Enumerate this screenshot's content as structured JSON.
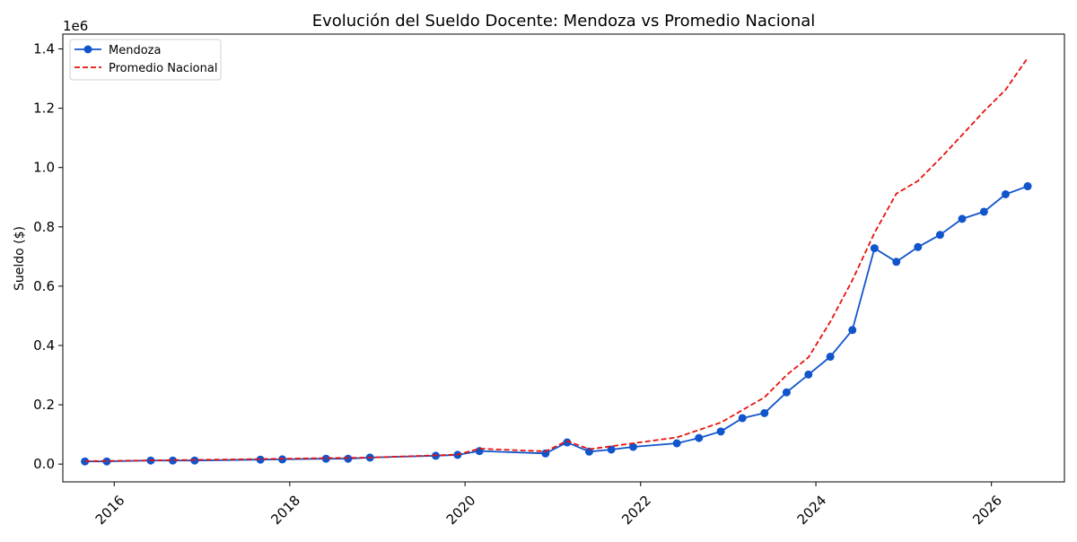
{
  "chart_data": {
    "type": "line",
    "title": "Evolución del Sueldo Docente: Mendoza vs Promedio Nacional",
    "xlabel": "",
    "ylabel": "Sueldo ($)",
    "y_offset_label": "1e6",
    "xlim": [
      "2015-06-01",
      "2026-11-01"
    ],
    "ylim": [
      -0.06,
      1.45
    ],
    "x_ticks": [
      "2016-01-01",
      "2018-01-01",
      "2020-01-01",
      "2022-01-01",
      "2024-01-01",
      "2026-01-01"
    ],
    "x_tick_labels": [
      "2016",
      "2018",
      "2020",
      "2022",
      "2024",
      "2026"
    ],
    "y_ticks": [
      0.0,
      0.2,
      0.4,
      0.6,
      0.8,
      1.0,
      1.2,
      1.4
    ],
    "y_tick_labels": [
      "0.0",
      "0.2",
      "0.4",
      "0.6",
      "0.8",
      "1.0",
      "1.2",
      "1.4"
    ],
    "grid": false,
    "legend_position": "top-left",
    "series": [
      {
        "name": "Mendoza",
        "color": "#1155cc",
        "style": "solid",
        "marker": "circle",
        "points": [
          [
            "2015-09-01",
            0.009
          ],
          [
            "2015-12-01",
            0.009
          ],
          [
            "2016-06-01",
            0.012
          ],
          [
            "2016-09-01",
            0.012
          ],
          [
            "2016-12-01",
            0.012
          ],
          [
            "2017-09-01",
            0.015
          ],
          [
            "2017-12-01",
            0.016
          ],
          [
            "2018-06-01",
            0.018
          ],
          [
            "2018-09-01",
            0.018
          ],
          [
            "2018-12-01",
            0.022
          ],
          [
            "2019-09-01",
            0.028
          ],
          [
            "2019-12-01",
            0.031
          ],
          [
            "2020-03-01",
            0.044
          ],
          [
            "2020-12-01",
            0.036
          ],
          [
            "2021-03-01",
            0.073
          ],
          [
            "2021-06-01",
            0.042
          ],
          [
            "2021-09-01",
            0.049
          ],
          [
            "2021-12-01",
            0.058
          ],
          [
            "2022-06-01",
            0.07
          ],
          [
            "2022-09-01",
            0.088
          ],
          [
            "2022-12-01",
            0.11
          ],
          [
            "2023-03-01",
            0.155
          ],
          [
            "2023-06-01",
            0.172
          ],
          [
            "2023-09-01",
            0.242
          ],
          [
            "2023-12-01",
            0.302
          ],
          [
            "2024-03-01",
            0.362
          ],
          [
            "2024-06-01",
            0.452
          ],
          [
            "2024-09-01",
            0.728
          ],
          [
            "2024-12-01",
            0.682
          ],
          [
            "2025-03-01",
            0.732
          ],
          [
            "2025-06-01",
            0.773
          ],
          [
            "2025-09-01",
            0.827
          ],
          [
            "2025-12-01",
            0.851
          ],
          [
            "2026-03-01",
            0.91
          ],
          [
            "2026-06-01",
            0.937
          ]
        ]
      },
      {
        "name": "Promedio Nacional",
        "color": "#e8120c",
        "style": "dashed",
        "marker": "none",
        "points": [
          [
            "2015-09-01",
            0.01
          ],
          [
            "2016-12-01",
            0.014
          ],
          [
            "2017-12-01",
            0.018
          ],
          [
            "2018-12-01",
            0.022
          ],
          [
            "2019-12-01",
            0.032
          ],
          [
            "2020-03-01",
            0.052
          ],
          [
            "2020-12-01",
            0.043
          ],
          [
            "2021-03-01",
            0.078
          ],
          [
            "2021-06-01",
            0.05
          ],
          [
            "2021-12-01",
            0.07
          ],
          [
            "2022-06-01",
            0.09
          ],
          [
            "2022-12-01",
            0.14
          ],
          [
            "2023-06-01",
            0.225
          ],
          [
            "2023-09-01",
            0.3
          ],
          [
            "2023-12-01",
            0.36
          ],
          [
            "2024-03-01",
            0.48
          ],
          [
            "2024-06-01",
            0.62
          ],
          [
            "2024-09-01",
            0.78
          ],
          [
            "2024-12-01",
            0.912
          ],
          [
            "2025-03-01",
            0.955
          ],
          [
            "2025-06-01",
            1.03
          ],
          [
            "2025-09-01",
            1.11
          ],
          [
            "2025-12-01",
            1.19
          ],
          [
            "2026-03-01",
            1.262
          ],
          [
            "2026-06-01",
            1.37
          ]
        ]
      }
    ]
  }
}
